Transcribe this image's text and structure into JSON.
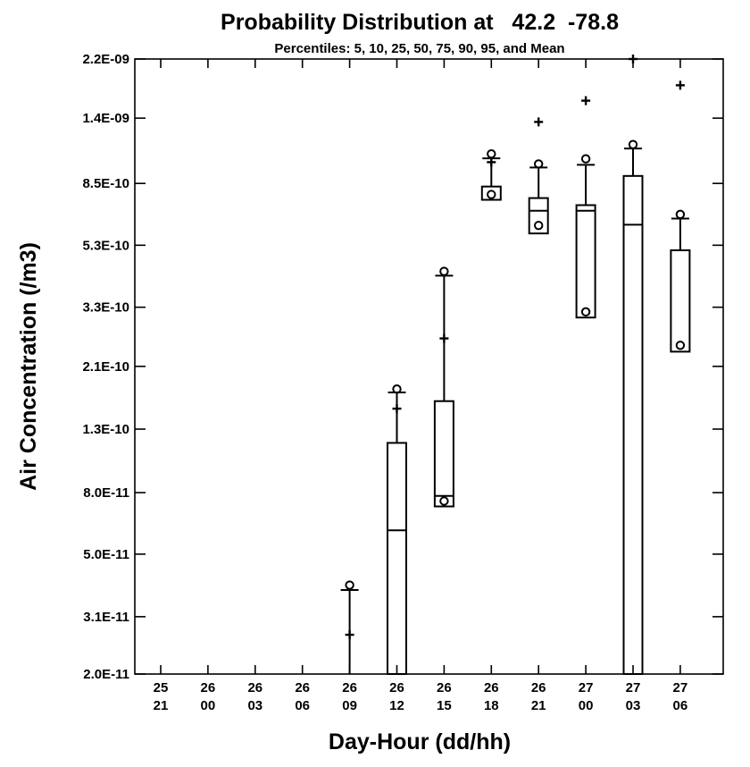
{
  "chart_data": {
    "type": "box",
    "title": "Probability Distribution at   42.2  -78.8",
    "subtitle": "Percentiles: 5, 10, 25, 50, 75, 90, 95, and Mean",
    "xlabel": "Day-Hour (dd/hh)",
    "ylabel": "Air Concentration (/m3)",
    "y_scale": "log",
    "ylim": [
      2e-11,
      2.2e-09
    ],
    "y_ticks": [
      "2.0E-11",
      "3.1E-11",
      "5.0E-11",
      "8.0E-11",
      "1.3E-10",
      "2.1E-10",
      "3.3E-10",
      "5.3E-10",
      "8.5E-10",
      "1.4E-09",
      "2.2E-09"
    ],
    "y_tick_values": [
      2e-11,
      3.1e-11,
      5e-11,
      8e-11,
      1.3e-10,
      2.1e-10,
      3.3e-10,
      5.3e-10,
      8.5e-10,
      1.4e-09,
      2.2e-09
    ],
    "categories": [
      {
        "day": "25",
        "hour": "21"
      },
      {
        "day": "26",
        "hour": "00"
      },
      {
        "day": "26",
        "hour": "03"
      },
      {
        "day": "26",
        "hour": "06"
      },
      {
        "day": "26",
        "hour": "09"
      },
      {
        "day": "26",
        "hour": "12"
      },
      {
        "day": "26",
        "hour": "15"
      },
      {
        "day": "26",
        "hour": "18"
      },
      {
        "day": "26",
        "hour": "21"
      },
      {
        "day": "27",
        "hour": "00"
      },
      {
        "day": "27",
        "hour": "03"
      },
      {
        "day": "27",
        "hour": "06"
      }
    ],
    "boxes": [
      null,
      null,
      null,
      null,
      {
        "p5": null,
        "p10": null,
        "p25": null,
        "p50": null,
        "p75": null,
        "p90": 3.8e-11,
        "p95": 4e-11,
        "mean": 2.7e-11
      },
      {
        "p5": null,
        "p10": null,
        "p25": null,
        "p50": 6e-11,
        "p75": 1.17e-10,
        "p90": 1.72e-10,
        "p95": 1.79e-10,
        "mean": 1.52e-10
      },
      {
        "p5": 7.3e-11,
        "p10": null,
        "p25": 7.2e-11,
        "p50": 7.8e-11,
        "p75": 1.61e-10,
        "p90": 4.2e-10,
        "p95": 4.4e-10,
        "mean": 2.6e-10
      },
      {
        "p5": 7.6e-10,
        "p10": null,
        "p25": 7.5e-10,
        "p50": 7.5e-10,
        "p75": 8.3e-10,
        "p90": 1.03e-09,
        "p95": 1.08e-09,
        "mean": 1e-09
      },
      {
        "p5": 6e-10,
        "p10": null,
        "p25": 5.8e-10,
        "p50": 6.9e-10,
        "p75": 7.6e-10,
        "p90": 9.6e-10,
        "p95": 1e-09,
        "mean": 1.36e-09
      },
      {
        "p5": 3.1e-10,
        "p10": null,
        "p25": 3.05e-10,
        "p50": 6.9e-10,
        "p75": 7.2e-10,
        "p90": 9.8e-10,
        "p95": 1.04e-09,
        "mean": 1.6e-09
      },
      {
        "p5": null,
        "p10": null,
        "p25": null,
        "p50": 6.2e-10,
        "p75": 9e-10,
        "p90": 1.11e-09,
        "p95": 1.16e-09,
        "mean": 2.2e-09
      },
      {
        "p5": 2.4e-10,
        "p10": null,
        "p25": 2.35e-10,
        "p50": null,
        "p75": 5.1e-10,
        "p90": 6.5e-10,
        "p95": 6.8e-10,
        "mean": 1.8e-09
      }
    ],
    "legend": "none",
    "grid": false
  }
}
